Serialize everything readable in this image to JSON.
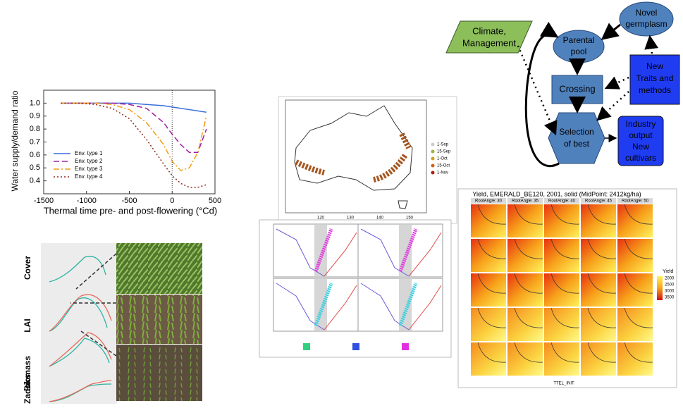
{
  "water_chart": {
    "type": "line",
    "y_label": "Water supply/demand ratio",
    "x_label": "Thermal time pre- and post-flowering (°Cd)",
    "x": [
      -1300,
      -1100,
      -900,
      -700,
      -500,
      -300,
      -100,
      0,
      100,
      200,
      300,
      400
    ],
    "xlim": [
      -1500,
      500
    ],
    "xticks": [
      -1500,
      -1000,
      -500,
      0,
      500
    ],
    "ylim": [
      0.3,
      1.1
    ],
    "yticks": [
      0.4,
      0.5,
      0.6,
      0.7,
      0.8,
      0.9,
      {
        "value": 1,
        "label": "1.0"
      }
    ],
    "series": [
      {
        "name": "Env. type 1",
        "color": "#3a6fd8",
        "dash": "none",
        "values": [
          1,
          1,
          1,
          1,
          1,
          0.99,
          0.98,
          0.97,
          0.96,
          0.95,
          0.94,
          0.93
        ]
      },
      {
        "name": "Env. type 2",
        "color": "#a020a0",
        "dash": "8 4",
        "values": [
          1,
          1,
          1,
          1,
          0.99,
          0.96,
          0.85,
          0.76,
          0.68,
          0.62,
          0.62,
          0.8
        ]
      },
      {
        "name": "Env. type 3",
        "color": "#f39c12",
        "dash": "8 3 2 3",
        "values": [
          1,
          1,
          1,
          0.99,
          0.95,
          0.85,
          0.68,
          0.55,
          0.48,
          0.5,
          0.62,
          0.9
        ]
      },
      {
        "name": "Env. type 4",
        "color": "#8b2a1a",
        "dash": "2 3",
        "values": [
          1,
          1,
          0.99,
          0.96,
          0.88,
          0.72,
          0.53,
          0.44,
          0.38,
          0.35,
          0.35,
          0.37
        ]
      }
    ]
  },
  "diagram": {
    "climate": [
      "Climate,",
      "Management"
    ],
    "parental": [
      "Parental",
      "pool"
    ],
    "novel": [
      "Novel",
      "germplasm"
    ],
    "traits": [
      "New",
      "Traits and",
      "methods"
    ],
    "crossing": "Crossing",
    "selection": [
      "Selection",
      "of best"
    ],
    "industry": [
      "Industry",
      "output",
      "New",
      "cultivars"
    ]
  },
  "map": {
    "legend": [
      "1-Sep",
      "15-Sep",
      "1-Oct",
      "15-Oct",
      "1-Nov"
    ],
    "lon_ticks": [
      "120",
      "130",
      "140",
      "150"
    ]
  },
  "heatmap": {
    "title": "Yield, EMERALD_BE120, 2001, solid (MidPoint: 2412kg/ha)",
    "columns": [
      "RootAngle: 30",
      "RootAngle: 35",
      "RootAngle: 40",
      "RootAngle: 45",
      "RootAngle: 50"
    ],
    "x_label": "TTEL_INIT",
    "legend_title": "Yield",
    "legend": [
      "2000",
      "2500",
      "3000",
      "3500"
    ]
  },
  "crop_panel": {
    "labels": [
      "Cover",
      "LAI",
      "Biomass",
      "Zadoks"
    ]
  }
}
